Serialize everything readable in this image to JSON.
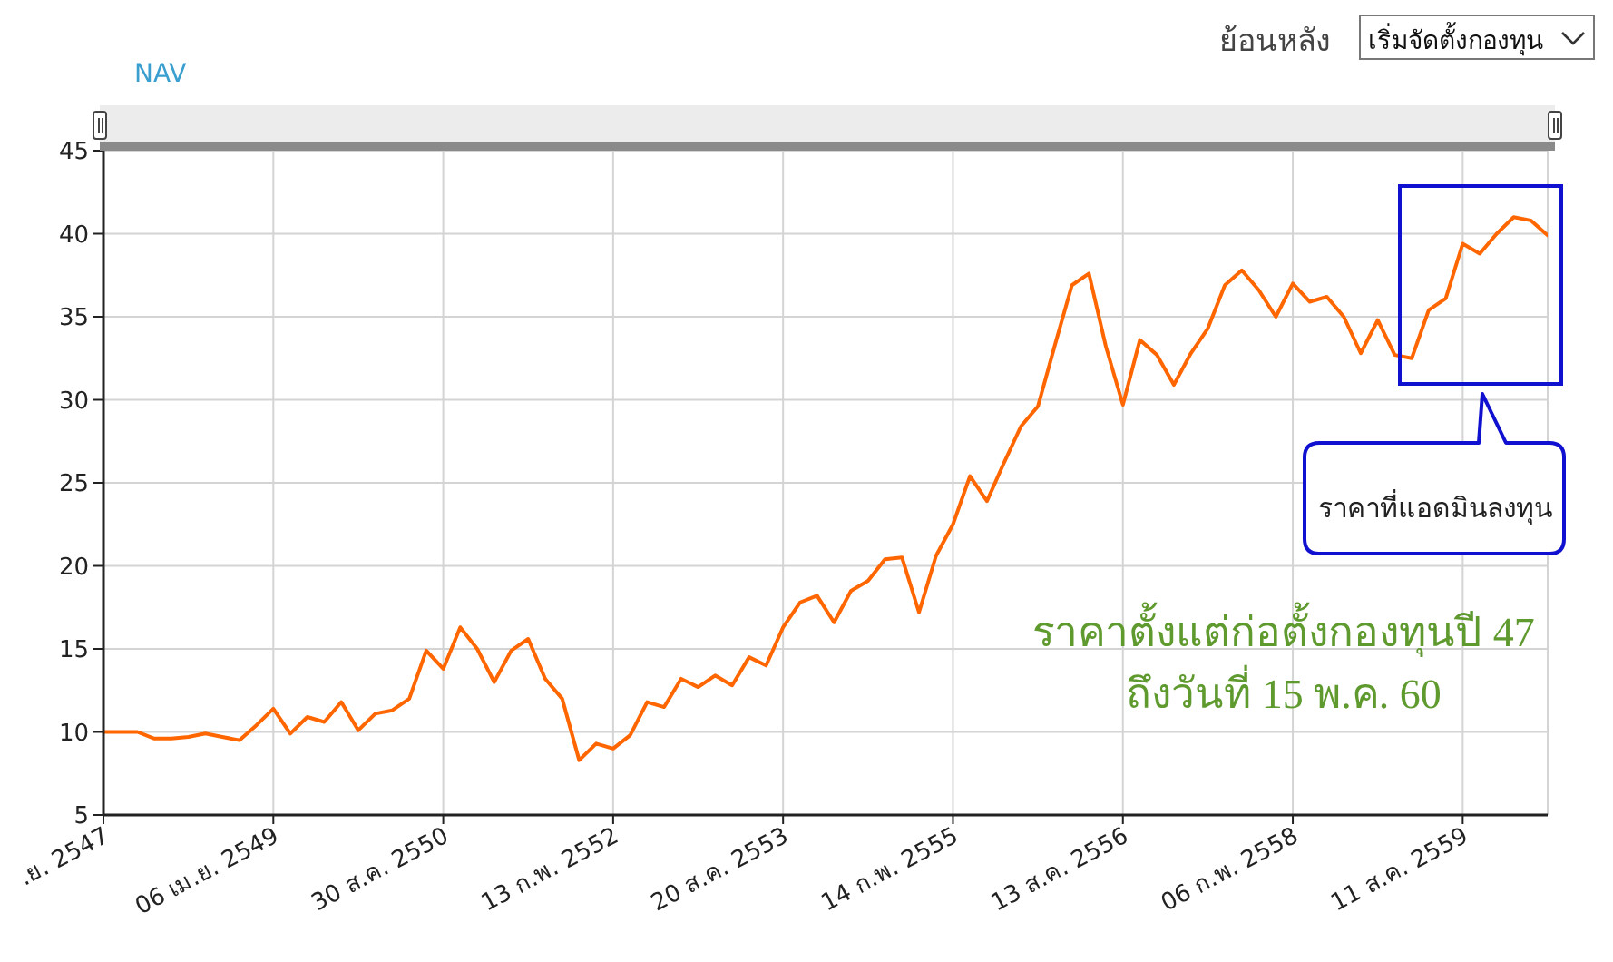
{
  "chart_data": {
    "type": "line",
    "ylabel": "NAV",
    "categories": [
      ".ย. 2547",
      null,
      null,
      null,
      null,
      null,
      null,
      null,
      null,
      null,
      "06 เม.ย. 2549",
      null,
      null,
      null,
      null,
      null,
      null,
      null,
      null,
      null,
      "30 ส.ค. 2550",
      null,
      null,
      null,
      null,
      null,
      null,
      null,
      null,
      null,
      "13 ก.พ. 2552",
      null,
      null,
      null,
      null,
      null,
      null,
      null,
      null,
      null,
      "20 ส.ค. 2553",
      null,
      null,
      null,
      null,
      null,
      null,
      null,
      null,
      null,
      "14 ก.พ. 2555",
      null,
      null,
      null,
      null,
      null,
      null,
      null,
      null,
      null,
      "13 ส.ค. 2556",
      null,
      null,
      null,
      null,
      null,
      null,
      null,
      null,
      null,
      "06 ก.พ. 2558",
      null,
      null,
      null,
      null,
      null,
      null,
      null,
      null,
      null,
      "11 ส.ค. 2559",
      null,
      null,
      null,
      null,
      null
    ],
    "series": [
      {
        "color": "#ff6600",
        "values": [
          10.0,
          10.0,
          10.0,
          9.6,
          9.6,
          9.7,
          9.9,
          9.7,
          9.5,
          10.4,
          11.4,
          9.9,
          10.9,
          10.6,
          11.8,
          10.1,
          11.1,
          11.3,
          12.0,
          14.9,
          13.8,
          16.3,
          15.0,
          13.0,
          14.9,
          15.6,
          13.2,
          12.0,
          8.3,
          9.3,
          9.0,
          9.8,
          11.8,
          11.5,
          13.2,
          12.7,
          13.4,
          12.8,
          14.5,
          14.0,
          16.3,
          17.8,
          18.2,
          16.6,
          18.5,
          19.1,
          20.4,
          20.5,
          17.2,
          20.6,
          22.5,
          25.4,
          23.9,
          26.2,
          28.4,
          29.6,
          33.3,
          36.9,
          37.6,
          33.2,
          29.7,
          33.6,
          32.7,
          30.9,
          32.8,
          34.3,
          36.9,
          37.8,
          36.6,
          35.0,
          37.0,
          35.9,
          36.2,
          35.0,
          32.8,
          34.8,
          32.7,
          32.5,
          35.4,
          36.1,
          39.4,
          38.8,
          40.0,
          41.0,
          40.8,
          39.9
        ]
      }
    ],
    "ylim": [
      5,
      45
    ],
    "yticks": [
      5,
      10,
      15,
      20,
      25,
      30,
      35,
      40,
      45
    ],
    "grid": true,
    "annotations": [
      "ย้อนหลัง",
      "เริ่มจัดตั้งกองทุน",
      "ราคาที่แอดมินลงทุน",
      "ราคาตั้งแต่ก่อตั้งกองทุนปี 47",
      "ถึงวันที่ 15 พ.ค. 60"
    ]
  }
}
